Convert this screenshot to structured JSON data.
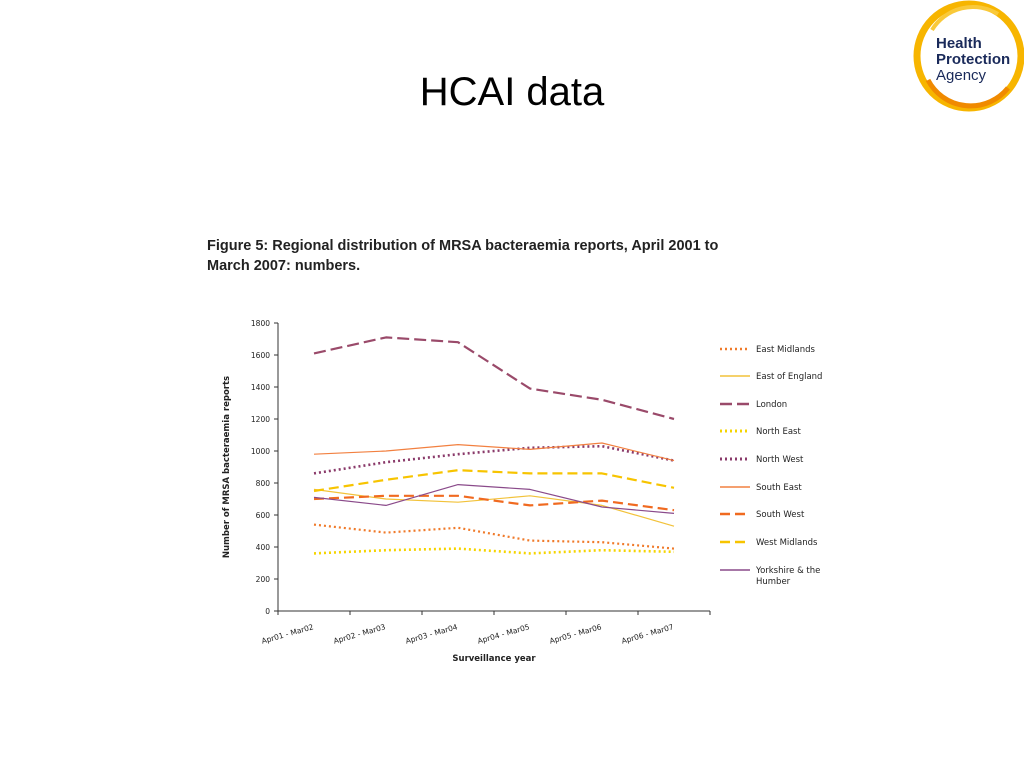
{
  "slide": {
    "title": "HCAI data"
  },
  "logo": {
    "text_lines": [
      "Health",
      "Protection",
      "Agency"
    ],
    "ring_colors": [
      "#f7b500",
      "#f08a00"
    ]
  },
  "figure": {
    "caption_line1": "Figure 5: Regional distribution of MRSA bacteraemia reports, April 2001 to",
    "caption_line2": "March 2007: numbers."
  },
  "chart_data": {
    "type": "line",
    "title": "Figure 5: Regional distribution of MRSA bacteraemia reports, April 2001 to March 2007: numbers.",
    "xlabel": "Surveillance year",
    "ylabel": "Number of MRSA bacteraemia reports",
    "ylim": [
      0,
      1800
    ],
    "yticks": [
      0,
      200,
      400,
      600,
      800,
      1000,
      1200,
      1400,
      1600,
      1800
    ],
    "categories": [
      "Apr01 - Mar02",
      "Apr02 - Mar03",
      "Apr03 - Mar04",
      "Apr04 - Mar05",
      "Apr05 - Mar06",
      "Apr06 - Mar07"
    ],
    "grid": false,
    "legend_position": "right",
    "series": [
      {
        "name": "East Midlands",
        "values": [
          540,
          490,
          520,
          440,
          430,
          390
        ],
        "color": "#f07a2a",
        "dash": "2,3",
        "width": 2.2
      },
      {
        "name": "East of England",
        "values": [
          760,
          700,
          680,
          720,
          660,
          530
        ],
        "color": "#f2c23a",
        "dash": "",
        "width": 1.2
      },
      {
        "name": "London",
        "values": [
          1610,
          1710,
          1680,
          1390,
          1320,
          1200
        ],
        "color": "#9a4a6a",
        "dash": "12,5",
        "width": 2.2
      },
      {
        "name": "North East",
        "values": [
          360,
          380,
          390,
          360,
          380,
          370
        ],
        "color": "#f5d400",
        "dash": "2,3",
        "width": 2.6
      },
      {
        "name": "North West",
        "values": [
          860,
          930,
          980,
          1020,
          1030,
          940
        ],
        "color": "#8a3a6a",
        "dash": "2,3",
        "width": 2.6
      },
      {
        "name": "South East",
        "values": [
          980,
          1000,
          1040,
          1010,
          1050,
          940
        ],
        "color": "#f28040",
        "dash": "",
        "width": 1.2
      },
      {
        "name": "South West",
        "values": [
          700,
          720,
          720,
          660,
          690,
          630
        ],
        "color": "#f06a20",
        "dash": "10,5",
        "width": 2.2
      },
      {
        "name": "West Midlands",
        "values": [
          750,
          820,
          880,
          860,
          860,
          770
        ],
        "color": "#f7c400",
        "dash": "10,5",
        "width": 2.2
      },
      {
        "name": "Yorkshire & the Humber",
        "values": [
          710,
          660,
          790,
          760,
          650,
          610
        ],
        "color": "#8a4a8a",
        "dash": "",
        "width": 1.2
      }
    ]
  }
}
